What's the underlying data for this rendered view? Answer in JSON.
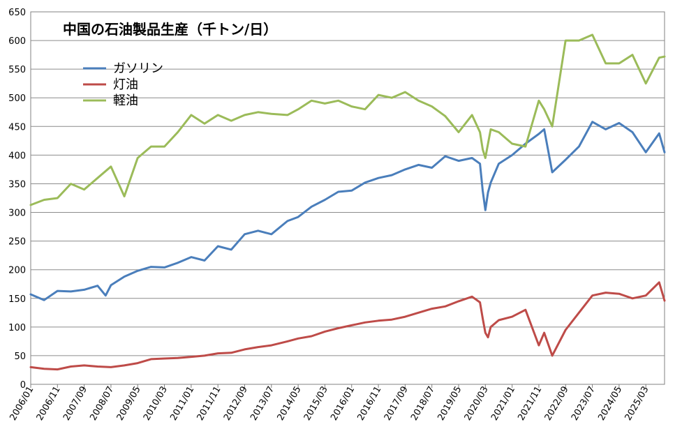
{
  "chart_data": {
    "type": "line",
    "title": "中国の石油製品生産（千トン/日）",
    "xlabel": "",
    "ylabel": "",
    "ylim": [
      0,
      650
    ],
    "yticks": [
      0,
      50,
      100,
      150,
      200,
      250,
      300,
      350,
      400,
      450,
      500,
      550,
      600,
      650
    ],
    "grid": "horizontal",
    "legend_position": "upper-left",
    "x_start": "2006/01",
    "x_end": "2025/10",
    "xtick_labels": [
      "2006/01",
      "2006/11",
      "2007/09",
      "2008/07",
      "2009/05",
      "2010/03",
      "2011/01",
      "2011/11",
      "2012/09",
      "2013/07",
      "2014/05",
      "2015/03",
      "2016/01",
      "2016/11",
      "2017/09",
      "2018/07",
      "2019/05",
      "2020/03",
      "2021/01",
      "2021/11",
      "2022/09",
      "2023/07",
      "2024/05",
      "2025/03"
    ],
    "series": [
      {
        "name": "ガソリン",
        "color": "#4a7ebb",
        "points": [
          [
            "2006/01",
            157
          ],
          [
            "2006/06",
            147
          ],
          [
            "2006/11",
            163
          ],
          [
            "2007/04",
            162
          ],
          [
            "2007/09",
            165
          ],
          [
            "2008/02",
            172
          ],
          [
            "2008/05",
            155
          ],
          [
            "2008/07",
            173
          ],
          [
            "2008/12",
            188
          ],
          [
            "2009/05",
            198
          ],
          [
            "2009/10",
            205
          ],
          [
            "2010/03",
            204
          ],
          [
            "2010/08",
            212
          ],
          [
            "2011/01",
            222
          ],
          [
            "2011/06",
            216
          ],
          [
            "2011/11",
            241
          ],
          [
            "2012/04",
            235
          ],
          [
            "2012/09",
            262
          ],
          [
            "2013/02",
            268
          ],
          [
            "2013/07",
            262
          ],
          [
            "2014/01",
            285
          ],
          [
            "2014/05",
            292
          ],
          [
            "2014/10",
            310
          ],
          [
            "2015/03",
            322
          ],
          [
            "2015/08",
            336
          ],
          [
            "2016/01",
            338
          ],
          [
            "2016/06",
            352
          ],
          [
            "2016/11",
            360
          ],
          [
            "2017/04",
            365
          ],
          [
            "2017/09",
            375
          ],
          [
            "2018/02",
            383
          ],
          [
            "2018/07",
            378
          ],
          [
            "2018/12",
            398
          ],
          [
            "2019/05",
            390
          ],
          [
            "2019/10",
            395
          ],
          [
            "2020/01",
            385
          ],
          [
            "2020/02",
            338
          ],
          [
            "2020/03",
            304
          ],
          [
            "2020/04",
            335
          ],
          [
            "2020/05",
            352
          ],
          [
            "2020/08",
            385
          ],
          [
            "2021/01",
            400
          ],
          [
            "2021/06",
            420
          ],
          [
            "2021/11",
            437
          ],
          [
            "2022/01",
            445
          ],
          [
            "2022/04",
            370
          ],
          [
            "2022/09",
            392
          ],
          [
            "2023/02",
            415
          ],
          [
            "2023/07",
            458
          ],
          [
            "2023/12",
            445
          ],
          [
            "2024/05",
            456
          ],
          [
            "2024/10",
            440
          ],
          [
            "2025/03",
            405
          ],
          [
            "2025/08",
            438
          ],
          [
            "2025/10",
            405
          ]
        ]
      },
      {
        "name": "灯油",
        "color": "#be4b48",
        "points": [
          [
            "2006/01",
            30
          ],
          [
            "2006/06",
            27
          ],
          [
            "2006/11",
            26
          ],
          [
            "2007/04",
            31
          ],
          [
            "2007/09",
            33
          ],
          [
            "2008/02",
            31
          ],
          [
            "2008/07",
            30
          ],
          [
            "2008/12",
            33
          ],
          [
            "2009/05",
            37
          ],
          [
            "2009/10",
            44
          ],
          [
            "2010/03",
            45
          ],
          [
            "2010/08",
            46
          ],
          [
            "2011/01",
            48
          ],
          [
            "2011/06",
            50
          ],
          [
            "2011/11",
            54
          ],
          [
            "2012/04",
            55
          ],
          [
            "2012/09",
            61
          ],
          [
            "2013/02",
            65
          ],
          [
            "2013/07",
            68
          ],
          [
            "2014/01",
            75
          ],
          [
            "2014/05",
            80
          ],
          [
            "2014/10",
            84
          ],
          [
            "2015/03",
            92
          ],
          [
            "2015/08",
            98
          ],
          [
            "2016/01",
            103
          ],
          [
            "2016/06",
            108
          ],
          [
            "2016/11",
            111
          ],
          [
            "2017/04",
            113
          ],
          [
            "2017/09",
            118
          ],
          [
            "2018/02",
            125
          ],
          [
            "2018/07",
            132
          ],
          [
            "2018/12",
            136
          ],
          [
            "2019/05",
            145
          ],
          [
            "2019/10",
            153
          ],
          [
            "2020/01",
            143
          ],
          [
            "2020/02",
            115
          ],
          [
            "2020/03",
            90
          ],
          [
            "2020/04",
            82
          ],
          [
            "2020/05",
            100
          ],
          [
            "2020/08",
            112
          ],
          [
            "2021/01",
            118
          ],
          [
            "2021/06",
            130
          ],
          [
            "2021/11",
            68
          ],
          [
            "2022/01",
            90
          ],
          [
            "2022/04",
            50
          ],
          [
            "2022/09",
            95
          ],
          [
            "2023/02",
            125
          ],
          [
            "2023/07",
            155
          ],
          [
            "2023/12",
            160
          ],
          [
            "2024/05",
            158
          ],
          [
            "2024/10",
            150
          ],
          [
            "2025/03",
            155
          ],
          [
            "2025/08",
            178
          ],
          [
            "2025/10",
            146
          ]
        ]
      },
      {
        "name": "軽油",
        "color": "#9bbb59",
        "points": [
          [
            "2006/01",
            313
          ],
          [
            "2006/06",
            322
          ],
          [
            "2006/11",
            325
          ],
          [
            "2007/04",
            350
          ],
          [
            "2007/09",
            340
          ],
          [
            "2008/02",
            360
          ],
          [
            "2008/07",
            380
          ],
          [
            "2008/12",
            328
          ],
          [
            "2009/05",
            395
          ],
          [
            "2009/10",
            415
          ],
          [
            "2010/03",
            415
          ],
          [
            "2010/08",
            440
          ],
          [
            "2011/01",
            470
          ],
          [
            "2011/06",
            455
          ],
          [
            "2011/11",
            470
          ],
          [
            "2012/04",
            460
          ],
          [
            "2012/09",
            470
          ],
          [
            "2013/02",
            475
          ],
          [
            "2013/07",
            472
          ],
          [
            "2014/01",
            470
          ],
          [
            "2014/05",
            480
          ],
          [
            "2014/10",
            495
          ],
          [
            "2015/03",
            490
          ],
          [
            "2015/08",
            495
          ],
          [
            "2016/01",
            485
          ],
          [
            "2016/06",
            480
          ],
          [
            "2016/11",
            505
          ],
          [
            "2017/04",
            500
          ],
          [
            "2017/09",
            510
          ],
          [
            "2018/02",
            495
          ],
          [
            "2018/07",
            485
          ],
          [
            "2018/12",
            468
          ],
          [
            "2019/05",
            440
          ],
          [
            "2019/10",
            470
          ],
          [
            "2020/01",
            440
          ],
          [
            "2020/02",
            410
          ],
          [
            "2020/03",
            395
          ],
          [
            "2020/04",
            420
          ],
          [
            "2020/05",
            445
          ],
          [
            "2020/08",
            440
          ],
          [
            "2021/01",
            420
          ],
          [
            "2021/06",
            415
          ],
          [
            "2021/11",
            495
          ],
          [
            "2022/01",
            480
          ],
          [
            "2022/04",
            450
          ],
          [
            "2022/09",
            600
          ],
          [
            "2023/02",
            600
          ],
          [
            "2023/07",
            610
          ],
          [
            "2023/12",
            560
          ],
          [
            "2024/05",
            560
          ],
          [
            "2024/10",
            575
          ],
          [
            "2025/03",
            525
          ],
          [
            "2025/08",
            570
          ],
          [
            "2025/10",
            572
          ]
        ]
      }
    ]
  }
}
